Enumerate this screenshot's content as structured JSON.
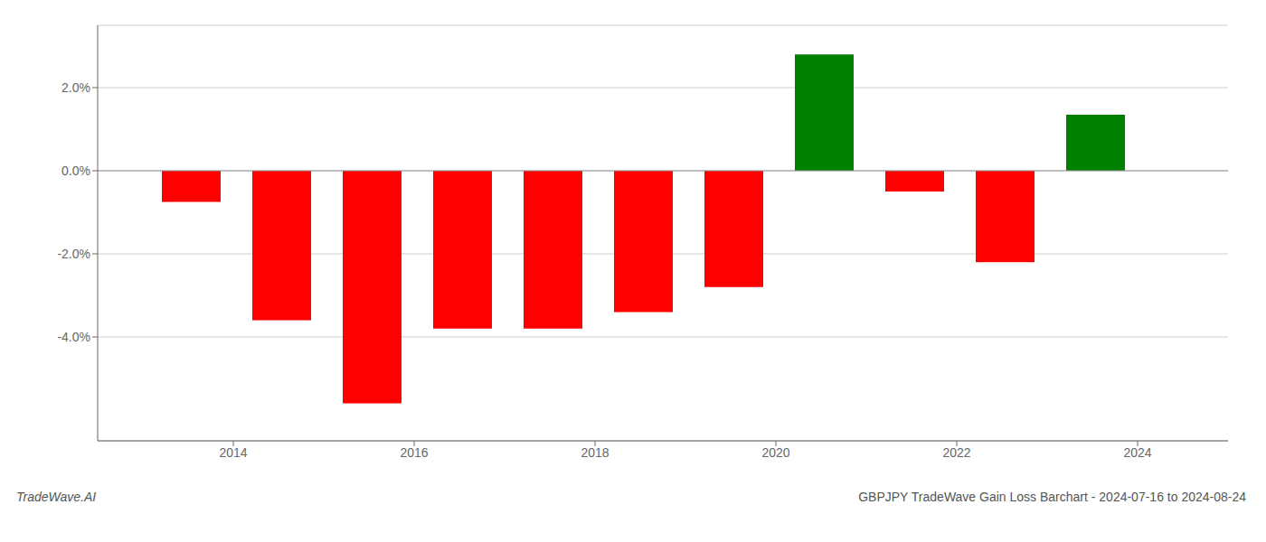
{
  "chart_data": {
    "type": "bar",
    "title": "GBPJPY TradeWave Gain Loss Barchart - 2024-07-16 to 2024-08-24",
    "annotations": [
      "TradeWave.AI"
    ],
    "x": [
      2013.54,
      2014.54,
      2015.54,
      2016.54,
      2017.54,
      2018.54,
      2019.54,
      2020.54,
      2021.54,
      2022.54,
      2023.54
    ],
    "values": [
      -0.75,
      -3.6,
      -5.6,
      -3.8,
      -3.8,
      -3.4,
      -2.8,
      2.8,
      -0.5,
      -2.2,
      1.35
    ],
    "colors": [
      "#FF0000",
      "#FF0000",
      "#FF0000",
      "#FF0000",
      "#FF0000",
      "#FF0000",
      "#FF0000",
      "#008000",
      "#FF0000",
      "#FF0000",
      "#008000"
    ],
    "xlim": [
      2012.5,
      2025.0
    ],
    "xticks": [
      2014,
      2016,
      2018,
      2020,
      2022,
      2024
    ],
    "ylim": [
      -6.5,
      3.5
    ],
    "yticks": [
      {
        "value": -4.0,
        "label": "-4.0%"
      },
      {
        "value": -2.0,
        "label": "-2.0%"
      },
      {
        "value": 0.0,
        "label": "0.0%"
      },
      {
        "value": 2.0,
        "label": "2.0%"
      }
    ],
    "grid": true
  }
}
